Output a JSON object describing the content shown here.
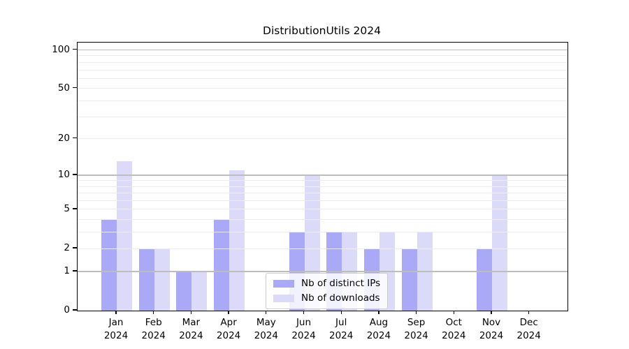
{
  "title": "DistributionUtils 2024",
  "chart_data": {
    "type": "bar",
    "title": "DistributionUtils 2024",
    "xlabel": "",
    "ylabel": "",
    "y_scale": "log1p",
    "ylim": [
      0,
      114
    ],
    "y_ticks": [
      0,
      1,
      2,
      5,
      10,
      20,
      50,
      100
    ],
    "grid": {
      "enabled": true,
      "major_values": [
        1,
        10,
        100
      ],
      "minor_values": [
        2,
        3,
        4,
        5,
        6,
        7,
        8,
        9,
        20,
        30,
        40,
        50,
        60,
        70,
        80,
        90
      ]
    },
    "months": [
      "Jan",
      "Feb",
      "Mar",
      "Apr",
      "May",
      "Jun",
      "Jul",
      "Aug",
      "Sep",
      "Oct",
      "Nov",
      "Dec"
    ],
    "year": "2024",
    "series": [
      {
        "name": "Nb of distinct IPs",
        "color": "#a9a9f8",
        "values": [
          4,
          2,
          1,
          4,
          0,
          3,
          3,
          2,
          2,
          0,
          2,
          0
        ]
      },
      {
        "name": "Nb of downloads",
        "color": "#dbdaf9",
        "values": [
          13,
          2,
          1,
          11,
          0,
          10,
          3,
          3,
          3,
          0,
          10,
          0
        ]
      }
    ],
    "legend_position": "lower center"
  },
  "colors": {
    "major_grid": "#bdbdbd",
    "minor_grid": "#ececec",
    "spine": "#000000",
    "text": "#000000",
    "background": "#ffffff"
  }
}
